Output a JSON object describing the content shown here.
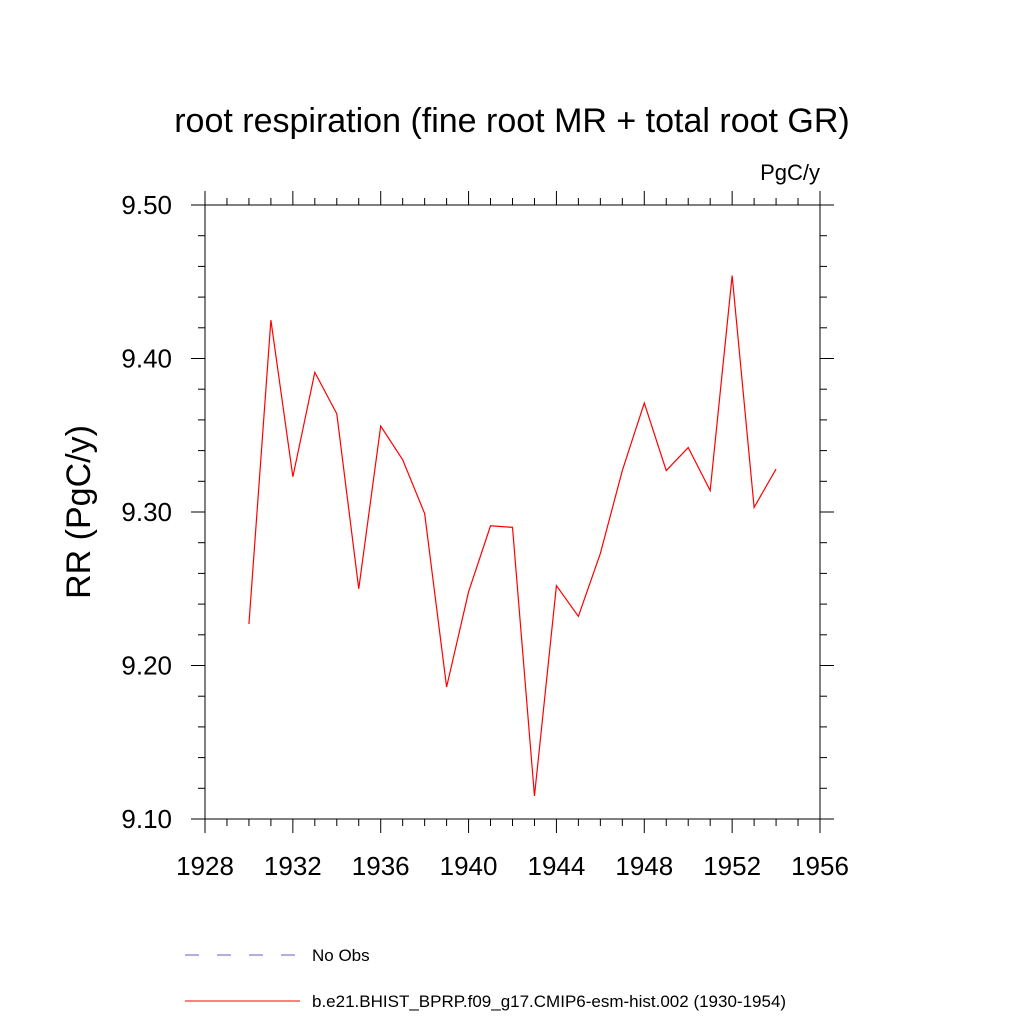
{
  "chart_data": {
    "type": "line",
    "title": "root respiration (fine root MR + total root GR)",
    "units_label": "PgC/y",
    "ylabel": "RR  (PgC/y)",
    "xlabel": "",
    "xlim": [
      1928,
      1956
    ],
    "ylim": [
      9.1,
      9.5
    ],
    "x_ticks": [
      "1928",
      "1932",
      "1936",
      "1940",
      "1944",
      "1948",
      "1952",
      "1956"
    ],
    "y_ticks": [
      "9.10",
      "9.20",
      "9.30",
      "9.40",
      "9.50"
    ],
    "grid": false,
    "legend_position": "bottom",
    "series": [
      {
        "name": "b.e21.BHIST_BPRP.f09_g17.CMIP6-esm-hist.002 (1930-1954)",
        "color": "#ff0000",
        "style": "solid",
        "x": [
          1930,
          1931,
          1932,
          1933,
          1934,
          1935,
          1936,
          1937,
          1938,
          1939,
          1940,
          1941,
          1942,
          1943,
          1944,
          1945,
          1946,
          1947,
          1948,
          1949,
          1950,
          1951,
          1952,
          1953,
          1954
        ],
        "y": [
          9.227,
          9.425,
          9.323,
          9.391,
          9.364,
          9.25,
          9.356,
          9.334,
          9.299,
          9.186,
          9.248,
          9.291,
          9.29,
          9.115,
          9.252,
          9.232,
          9.273,
          9.327,
          9.371,
          9.327,
          9.342,
          9.314,
          9.454,
          9.303,
          9.328
        ]
      }
    ],
    "legend": [
      {
        "label": "No Obs",
        "color": "#6a5acd",
        "style": "dashed"
      },
      {
        "label": "b.e21.BHIST_BPRP.f09_g17.CMIP6-esm-hist.002 (1930-1954)",
        "color": "#ff0000",
        "style": "solid"
      }
    ]
  }
}
